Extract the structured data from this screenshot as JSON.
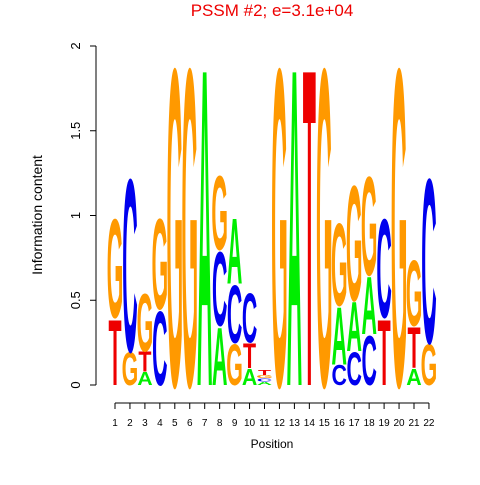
{
  "chart_data": {
    "type": "logo",
    "title": "PSSM #2; e=3.1e+04",
    "xlabel": "Position",
    "ylabel": "Information content",
    "categories": [
      "1",
      "2",
      "3",
      "4",
      "5",
      "6",
      "7",
      "8",
      "9",
      "10",
      "11",
      "12",
      "13",
      "14",
      "15",
      "16",
      "17",
      "18",
      "19",
      "20",
      "21",
      "22"
    ],
    "ylim": [
      0,
      2
    ],
    "yticks": [
      0,
      0.5,
      1,
      1.5,
      2
    ],
    "series": [
      {
        "name": "A",
        "color": "#00ee00",
        "values": [
          0,
          0,
          0.08,
          0,
          0,
          0,
          1.93,
          0.35,
          0.4,
          0.1,
          0.02,
          0,
          1.93,
          0,
          0,
          0.35,
          0.3,
          0.35,
          0,
          0,
          0.1,
          0
        ]
      },
      {
        "name": "C",
        "color": "#0000ee",
        "values": [
          0,
          1.05,
          0,
          0.45,
          0,
          0,
          0,
          0.45,
          0.35,
          0.3,
          0.02,
          0,
          0,
          0,
          0,
          0.12,
          0.2,
          0.3,
          0.6,
          0,
          0,
          1.0
        ]
      },
      {
        "name": "G",
        "color": "#ff9900",
        "values": [
          0.6,
          0.2,
          0.35,
          0.55,
          1.93,
          1.93,
          0,
          0.45,
          0.25,
          0,
          0.02,
          1.93,
          0,
          0,
          1.93,
          0.5,
          0.7,
          0.6,
          0,
          1.93,
          0.4,
          0.25
        ]
      },
      {
        "name": "T",
        "color": "#ee0000",
        "values": [
          0.4,
          0,
          0.12,
          0,
          0,
          0,
          0,
          0,
          0,
          0.15,
          0.03,
          0,
          0,
          1.93,
          0,
          0,
          0,
          0,
          0.4,
          0,
          0.25,
          0
        ]
      }
    ]
  }
}
